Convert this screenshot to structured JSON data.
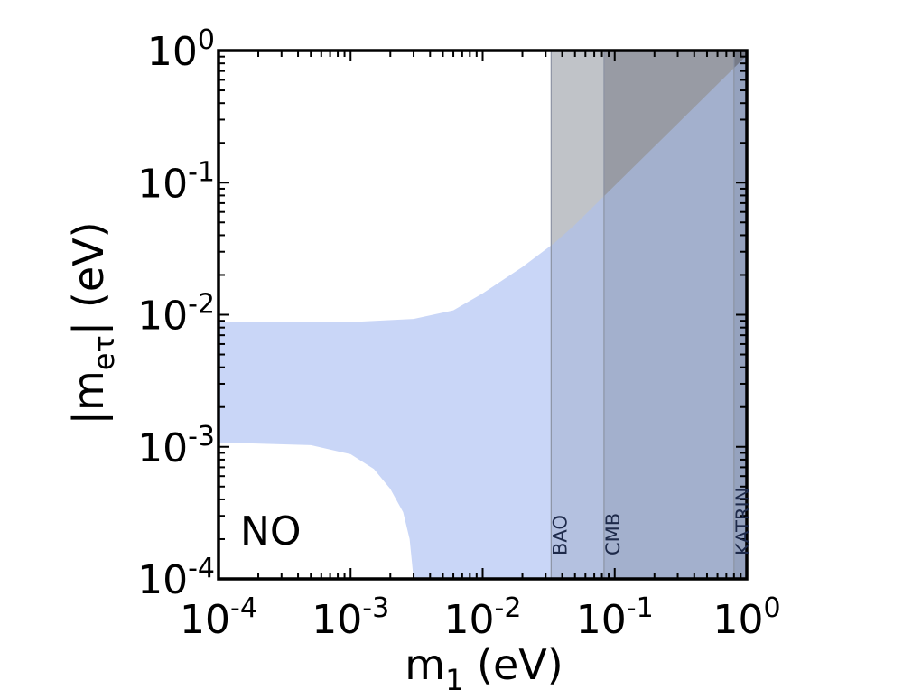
{
  "chart_data": {
    "type": "area",
    "panel_label": "NO",
    "xscale": "log",
    "yscale": "log",
    "xlim": [
      0.0001,
      1
    ],
    "ylim": [
      0.0001,
      1
    ],
    "xlabel": {
      "main": "m",
      "sub": "1",
      "unit": " (eV)"
    },
    "ylabel": {
      "pre": "|m",
      "sub": "eτ",
      "post": "| (eV)"
    },
    "x_ticks": [
      {
        "value": 0.0001,
        "base": "10",
        "exp": "-4"
      },
      {
        "value": 0.001,
        "base": "10",
        "exp": "-3"
      },
      {
        "value": 0.01,
        "base": "10",
        "exp": "-2"
      },
      {
        "value": 0.1,
        "base": "10",
        "exp": "-1"
      },
      {
        "value": 1,
        "base": "10",
        "exp": "0"
      }
    ],
    "y_ticks": [
      {
        "value": 0.0001,
        "base": "10",
        "exp": "-4"
      },
      {
        "value": 0.001,
        "base": "10",
        "exp": "-3"
      },
      {
        "value": 0.01,
        "base": "10",
        "exp": "-2"
      },
      {
        "value": 0.1,
        "base": "10",
        "exp": "-1"
      },
      {
        "value": 1,
        "base": "10",
        "exp": "0"
      }
    ],
    "allowed_region": {
      "color": "#c9d6f7",
      "upper": [
        [
          0.0001,
          0.0088
        ],
        [
          0.001,
          0.0088
        ],
        [
          0.003,
          0.0093
        ],
        [
          0.006,
          0.0108
        ],
        [
          0.01,
          0.0145
        ],
        [
          0.02,
          0.023
        ],
        [
          0.035,
          0.035
        ],
        [
          0.05,
          0.048
        ],
        [
          0.1,
          0.095
        ],
        [
          0.3,
          0.28
        ],
        [
          1,
          0.92
        ]
      ],
      "lower": [
        [
          0.0001,
          0.00108
        ],
        [
          0.0005,
          0.00103
        ],
        [
          0.001,
          0.00088
        ],
        [
          0.0015,
          0.00068
        ],
        [
          0.002,
          0.00048
        ],
        [
          0.0025,
          0.00032
        ],
        [
          0.0028,
          0.0002
        ],
        [
          0.003,
          0.0001
        ]
      ]
    },
    "exclusions": [
      {
        "name": "BAO",
        "x_min": 0.033,
        "color": "#d7d8da"
      },
      {
        "name": "CMB",
        "x_min": 0.083,
        "color": "#b7b8ba"
      },
      {
        "name": "KATRIN",
        "x_min": 0.8,
        "color": "#8f9096"
      }
    ]
  }
}
